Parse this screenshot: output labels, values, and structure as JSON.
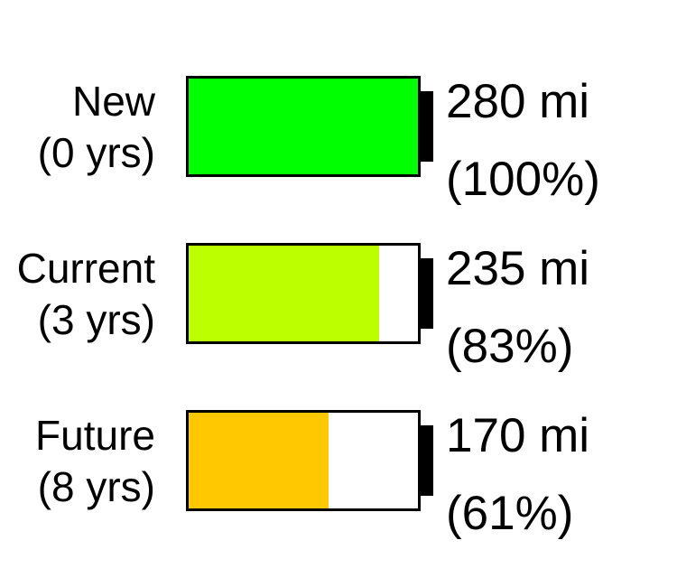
{
  "chart_data": {
    "type": "bar",
    "categories": [
      "New (0 yrs)",
      "Current (3 yrs)",
      "Future (8 yrs)"
    ],
    "series": [
      {
        "values": [
          280,
          235,
          170
        ]
      }
    ],
    "percent_values": [
      100,
      83,
      61
    ],
    "ylim": [
      0,
      280
    ],
    "grid": false,
    "title": "",
    "xlabel": "",
    "ylabel": ""
  },
  "items": [
    {
      "name": "New",
      "age": "(0 yrs)",
      "range": "280 mi",
      "percent": "(100%)",
      "level": 1.0,
      "color": "#00ff00"
    },
    {
      "name": "Current",
      "age": "(3 yrs)",
      "range": "235 mi",
      "percent": "(83%)",
      "level": 0.83,
      "color": "#bbff00"
    },
    {
      "name": "Future",
      "age": "(8 yrs)",
      "range": "170 mi",
      "percent": "(61%)",
      "level": 0.61,
      "color": "#ffc800"
    }
  ]
}
